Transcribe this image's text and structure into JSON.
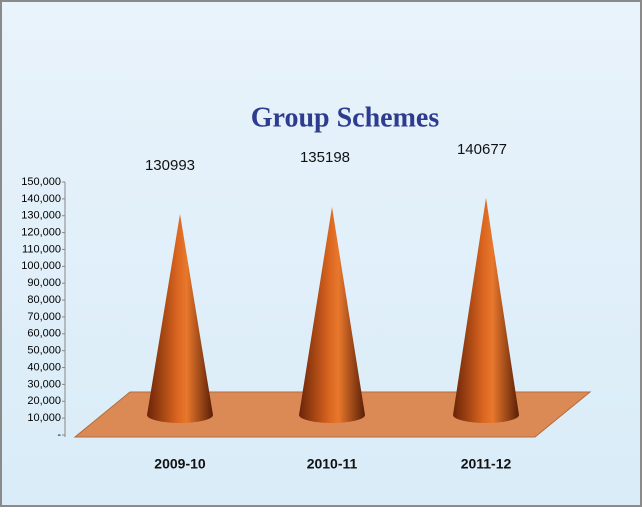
{
  "chart_data": {
    "type": "cone",
    "title": "Group Schemes",
    "categories": [
      "2009-10",
      "2010-11",
      "2011-12"
    ],
    "values": [
      130993,
      135198,
      140677
    ],
    "color": "#c8561c",
    "ylim": [
      0,
      150000
    ],
    "yticks": [
      {
        "value": 0,
        "label": "-"
      },
      {
        "value": 10000,
        "label": "10,000"
      },
      {
        "value": 20000,
        "label": "20,000"
      },
      {
        "value": 30000,
        "label": "30,000"
      },
      {
        "value": 40000,
        "label": "40,000"
      },
      {
        "value": 50000,
        "label": "50,000"
      },
      {
        "value": 60000,
        "label": "60,000"
      },
      {
        "value": 70000,
        "label": "70,000"
      },
      {
        "value": 80000,
        "label": "80,000"
      },
      {
        "value": 90000,
        "label": "90,000"
      },
      {
        "value": 100000,
        "label": "100,000"
      },
      {
        "value": 110000,
        "label": "110,000"
      },
      {
        "value": 120000,
        "label": "120,000"
      },
      {
        "value": 130000,
        "label": "130,000"
      },
      {
        "value": 140000,
        "label": "140,000"
      },
      {
        "value": 150000,
        "label": "150,000"
      }
    ]
  }
}
